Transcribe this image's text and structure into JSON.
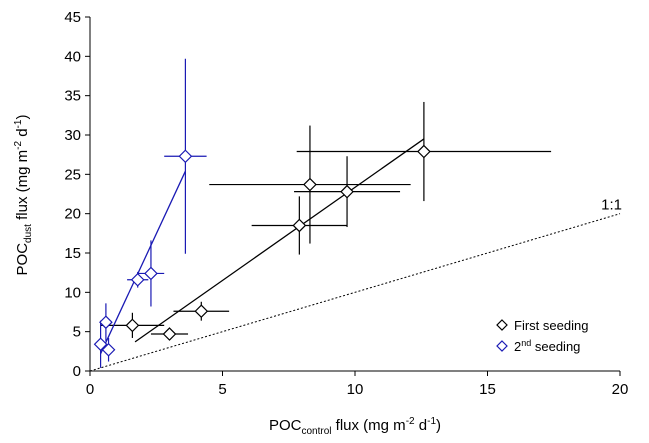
{
  "chart_data": {
    "type": "scatter",
    "xlabel": [
      "POC",
      "control",
      " flux (mg m",
      "-2",
      " d",
      "-1",
      ")"
    ],
    "ylabel": [
      "POC",
      "dust",
      " flux (mg m",
      "-2",
      " d",
      "-1",
      ")"
    ],
    "xlim": [
      0,
      20
    ],
    "ylim": [
      0,
      45
    ],
    "xticks": [
      0,
      5,
      10,
      15,
      20
    ],
    "yticks": [
      0,
      5,
      10,
      15,
      20,
      25,
      30,
      35,
      40,
      45
    ],
    "grid": false,
    "legend": "lower right",
    "series": [
      {
        "name": [
          "First seeding"
        ],
        "color": "#000000",
        "x": [
          3.0,
          1.6,
          4.2,
          7.9,
          8.3,
          9.7,
          12.6
        ],
        "values": [
          4.7,
          5.8,
          7.6,
          18.5,
          23.7,
          22.8,
          27.9
        ],
        "xerr": [
          0.7,
          1.2,
          1.05,
          1.8,
          3.8,
          2.0,
          4.8
        ],
        "yerr": [
          0,
          1.6,
          1.2,
          3.7,
          7.5,
          4.5,
          6.3
        ],
        "fit": {
          "x": [
            1.7,
            12.6
          ],
          "y": [
            3.7,
            29.5
          ]
        }
      },
      {
        "name": [
          "2",
          "nd",
          " seeding"
        ],
        "color": "#1a1ab4",
        "x": [
          0.4,
          0.6,
          0.7,
          1.8,
          2.3,
          3.6
        ],
        "values": [
          3.4,
          6.2,
          2.7,
          11.6,
          12.4,
          27.3
        ],
        "xerr": [
          0.1,
          0.1,
          0.1,
          0.4,
          0.5,
          0.8
        ],
        "yerr": [
          3.0,
          2.4,
          1.5,
          1.0,
          4.2,
          12.4
        ],
        "fit": {
          "x": [
            0.4,
            3.6
          ],
          "y": [
            2.2,
            25.4
          ]
        }
      }
    ],
    "reference_line": {
      "x": [
        0,
        20
      ],
      "y": [
        0,
        20
      ],
      "label": "1:1"
    }
  }
}
